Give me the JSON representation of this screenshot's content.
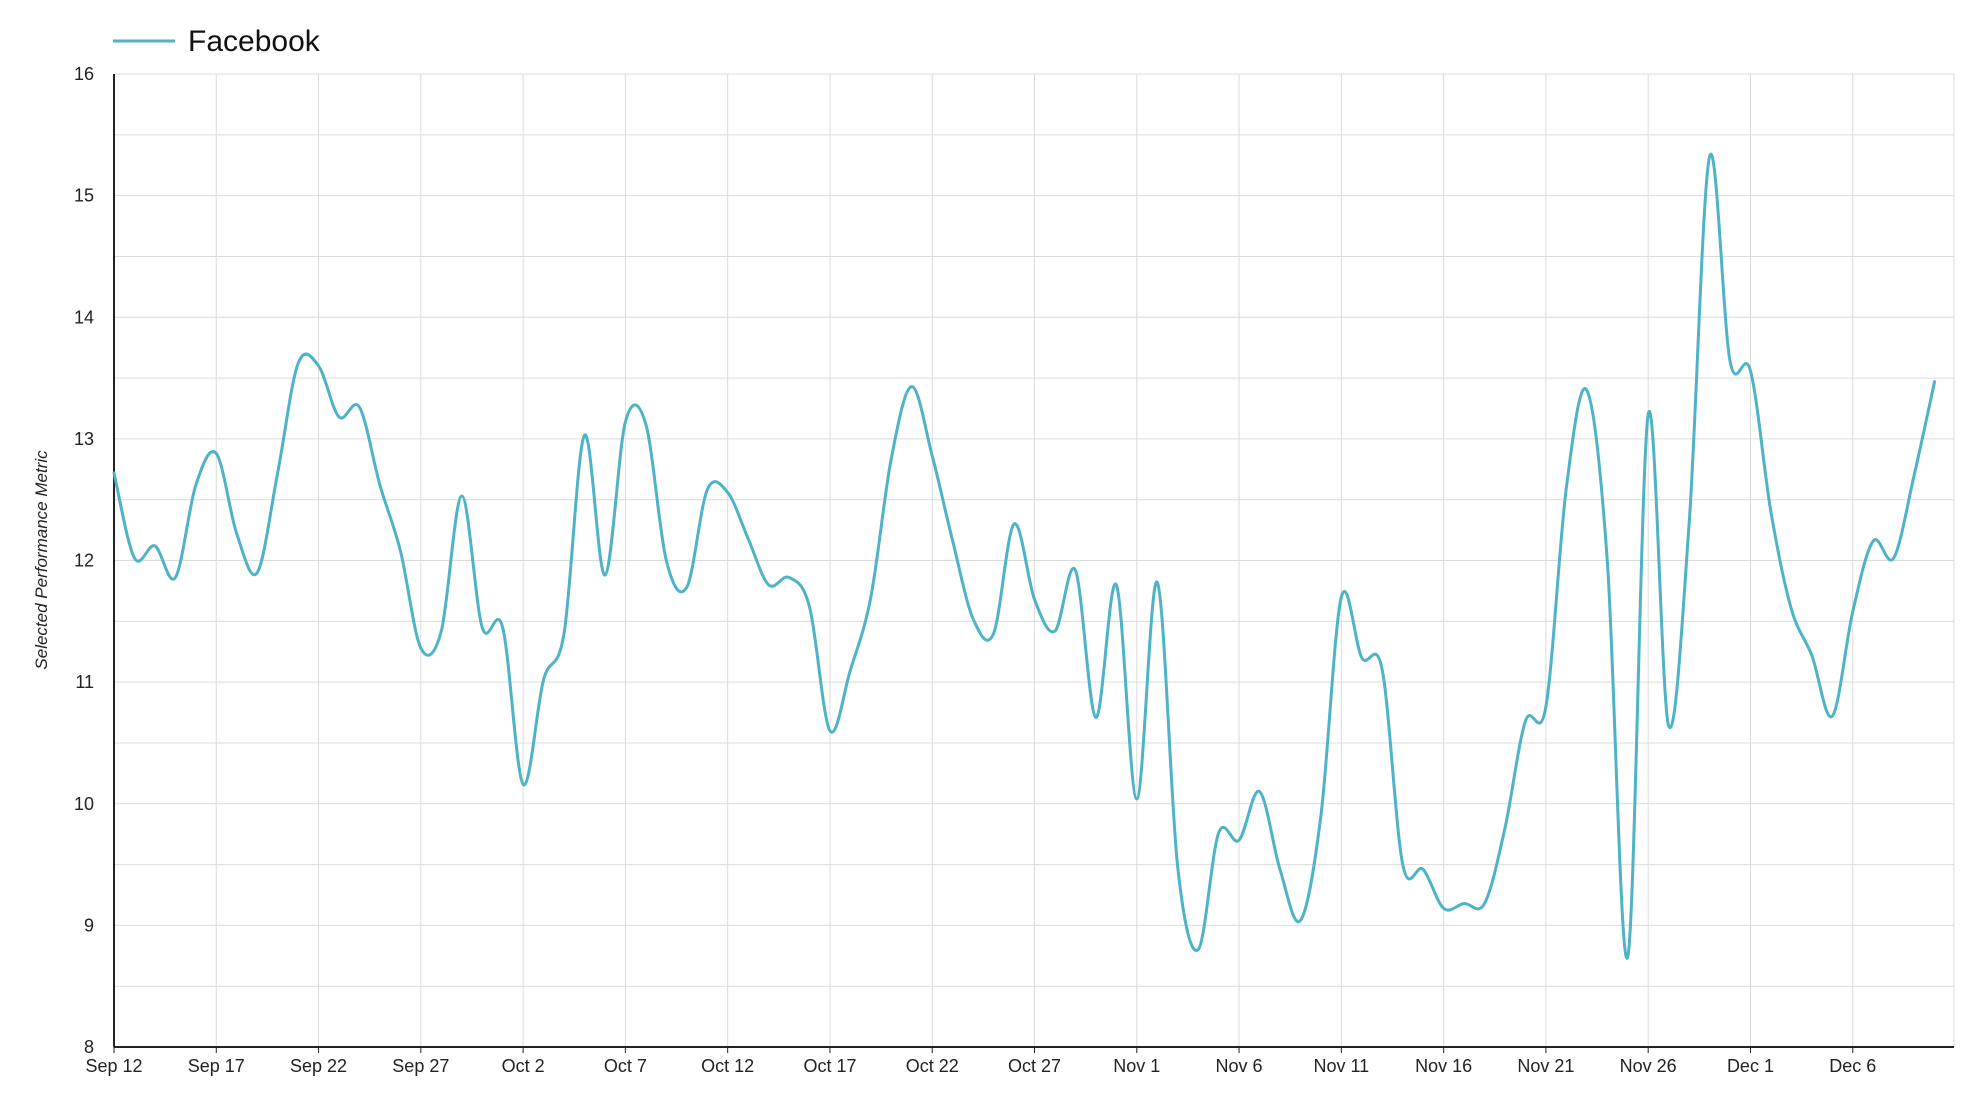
{
  "chart_data": {
    "type": "line",
    "x_start": "Sep 12",
    "ylabel": "Selected Performance Metric",
    "ylim": [
      8,
      16
    ],
    "yticks": [
      8,
      9,
      10,
      11,
      12,
      13,
      14,
      15,
      16
    ],
    "xtick_labels": [
      "Sep 12",
      "Sep 17",
      "Sep 22",
      "Sep 27",
      "Oct 2",
      "Oct 7",
      "Oct 12",
      "Oct 17",
      "Oct 22",
      "Oct 27",
      "Nov 1",
      "Nov 6",
      "Nov 11",
      "Nov 16",
      "Nov 21",
      "Nov 26",
      "Dec 1",
      "Dec 6"
    ],
    "x_count": 90,
    "grid": true,
    "legend_position": "top-left",
    "series": [
      {
        "name": "Facebook",
        "color": "#4eb3c6",
        "values": [
          12.72,
          12.02,
          12.12,
          11.86,
          12.62,
          12.88,
          12.22,
          11.9,
          12.72,
          13.62,
          13.6,
          13.18,
          13.26,
          12.62,
          12.08,
          11.28,
          11.42,
          12.53,
          11.45,
          11.45,
          10.16,
          11.02,
          11.4,
          13.03,
          11.88,
          13.14,
          13.12,
          12.0,
          11.78,
          12.58,
          12.56,
          12.18,
          11.8,
          11.86,
          11.62,
          10.6,
          11.1,
          11.7,
          12.84,
          13.43,
          12.86,
          12.16,
          11.52,
          11.4,
          12.3,
          11.68,
          11.42,
          11.92,
          10.71,
          11.8,
          10.04,
          11.82,
          9.48,
          8.8,
          9.76,
          9.7,
          10.1,
          9.46,
          9.04,
          9.9,
          11.7,
          11.2,
          11.1,
          9.5,
          9.46,
          9.14,
          9.18,
          9.18,
          9.8,
          10.68,
          10.8,
          12.6,
          13.4,
          12.0,
          8.74,
          13.2,
          10.64,
          12.3,
          15.32,
          13.64,
          13.56,
          12.4,
          11.6,
          11.22,
          10.72,
          11.58,
          12.16,
          12.02,
          12.7,
          13.47
        ]
      }
    ]
  }
}
